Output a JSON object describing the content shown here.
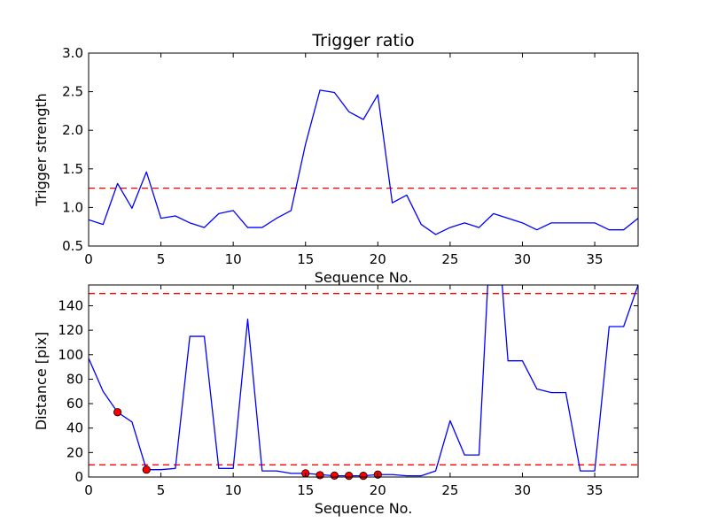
{
  "chart_data": [
    {
      "type": "line",
      "title": "Trigger ratio",
      "xlabel": "Sequence No.",
      "ylabel": "Trigger strength",
      "xlim": [
        0,
        38
      ],
      "ylim": [
        0.5,
        3.0
      ],
      "xticks": [
        0,
        5,
        10,
        15,
        20,
        25,
        30,
        35
      ],
      "yticks": [
        0.5,
        1.0,
        1.5,
        2.0,
        2.5,
        3.0
      ],
      "ytick_labels": [
        "0.5",
        "1.0",
        "1.5",
        "2.0",
        "2.5",
        "3.0"
      ],
      "grid": false,
      "series": [
        {
          "color": "#0000ff",
          "x": [
            0,
            1,
            2,
            3,
            4,
            5,
            6,
            7,
            8,
            9,
            10,
            11,
            12,
            13,
            14,
            15,
            16,
            17,
            18,
            19,
            20,
            21,
            22,
            23,
            24,
            25,
            26,
            27,
            28,
            29,
            30,
            31,
            32,
            33,
            34,
            35,
            36,
            37,
            38
          ],
          "values": [
            0.84,
            0.78,
            1.31,
            0.99,
            1.46,
            0.86,
            0.89,
            0.8,
            0.74,
            0.92,
            0.96,
            0.74,
            0.74,
            0.86,
            0.96,
            1.82,
            2.52,
            2.49,
            2.24,
            2.14,
            2.46,
            1.06,
            1.16,
            0.78,
            0.65,
            0.74,
            0.8,
            0.74,
            0.92,
            0.86,
            0.8,
            0.71,
            0.8,
            0.8,
            0.8,
            0.8,
            0.71,
            0.71,
            0.86
          ]
        }
      ],
      "hlines": [
        {
          "y": 1.25,
          "color": "#ff0000",
          "style": "dashed"
        }
      ]
    },
    {
      "type": "line",
      "title": "",
      "xlabel": "Sequence No.",
      "ylabel": "Distance [pix]",
      "xlim": [
        0,
        38
      ],
      "ylim": [
        0,
        157
      ],
      "xticks": [
        0,
        5,
        10,
        15,
        20,
        25,
        30,
        35
      ],
      "yticks": [
        0,
        20,
        40,
        60,
        80,
        100,
        120,
        140
      ],
      "ytick_labels": [
        "0",
        "20",
        "40",
        "60",
        "80",
        "100",
        "120",
        "140"
      ],
      "grid": false,
      "series": [
        {
          "color": "#0000ff",
          "x": [
            0,
            1,
            2,
            3,
            4,
            5,
            6,
            7,
            8,
            9,
            10,
            11,
            12,
            13,
            14,
            15,
            16,
            17,
            18,
            19,
            20,
            21,
            22,
            23,
            24,
            25,
            26,
            27,
            27.6,
            28.6,
            29,
            30,
            31,
            32,
            33,
            34,
            35,
            36,
            37,
            38
          ],
          "values": [
            97,
            70,
            53,
            45,
            6,
            6,
            7,
            115,
            115,
            7,
            7,
            129,
            5,
            5,
            3,
            3,
            2,
            1,
            1,
            1,
            2,
            2,
            1,
            1,
            5,
            46,
            18,
            18,
            157,
            157,
            95,
            95,
            72,
            69,
            69,
            5,
            5,
            123,
            123,
            157
          ]
        }
      ],
      "markers": {
        "color": "#ff0000",
        "x": [
          2,
          4,
          15,
          16,
          17,
          18,
          19,
          20
        ],
        "values": [
          53,
          6,
          3,
          1.5,
          1.2,
          1,
          1,
          2
        ]
      },
      "hlines": [
        {
          "y": 150,
          "color": "#ff0000",
          "style": "dashed"
        },
        {
          "y": 10,
          "color": "#ff0000",
          "style": "dashed"
        }
      ]
    }
  ]
}
